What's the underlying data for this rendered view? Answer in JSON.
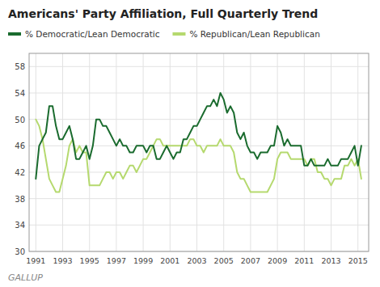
{
  "chart_data": {
    "type": "line",
    "title": "Americans' Party Affiliation, Full Quarterly Trend",
    "annotations": [
      "GALLUP"
    ],
    "grid": true,
    "legend": "top",
    "xlim": [
      1990.5,
      2015.8
    ],
    "xticks": [
      1991,
      1993,
      1995,
      1997,
      1999,
      2001,
      2003,
      2005,
      2007,
      2009,
      2011,
      2013,
      2015
    ],
    "ylim": [
      30,
      60
    ],
    "yticks": [
      30,
      34,
      38,
      42,
      46,
      50,
      54,
      58
    ],
    "x": [
      1991,
      1991.25,
      1991.5,
      1991.75,
      1992,
      1992.25,
      1992.5,
      1992.75,
      1993,
      1993.25,
      1993.5,
      1993.75,
      1994,
      1994.25,
      1994.5,
      1994.75,
      1995,
      1995.25,
      1995.5,
      1995.75,
      1996,
      1996.25,
      1996.5,
      1996.75,
      1997,
      1997.25,
      1997.5,
      1997.75,
      1998,
      1998.25,
      1998.5,
      1998.75,
      1999,
      1999.25,
      1999.5,
      1999.75,
      2000,
      2000.25,
      2000.5,
      2000.75,
      2001,
      2001.25,
      2001.5,
      2001.75,
      2002,
      2002.25,
      2002.5,
      2002.75,
      2003,
      2003.25,
      2003.5,
      2003.75,
      2004,
      2004.25,
      2004.5,
      2004.75,
      2005,
      2005.25,
      2005.5,
      2005.75,
      2006,
      2006.25,
      2006.5,
      2006.75,
      2007,
      2007.25,
      2007.5,
      2007.75,
      2008,
      2008.25,
      2008.5,
      2008.75,
      2009,
      2009.25,
      2009.5,
      2009.75,
      2010,
      2010.25,
      2010.5,
      2010.75,
      2011,
      2011.25,
      2011.5,
      2011.75,
      2012,
      2012.25,
      2012.5,
      2012.75,
      2013,
      2013.25,
      2013.5,
      2013.75,
      2014,
      2014.25,
      2014.5,
      2014.75,
      2015,
      2015.25
    ],
    "series": [
      {
        "name": "% Democratic/Lean Democratic",
        "color": "#1a6b2e",
        "values": [
          41,
          46,
          47,
          48,
          52,
          52,
          49,
          47,
          47,
          48,
          49,
          47,
          44,
          44,
          45,
          46,
          44,
          46,
          50,
          50,
          49,
          49,
          48,
          47,
          46,
          47,
          46,
          46,
          45,
          45,
          46,
          46,
          46,
          45,
          46,
          46,
          44,
          44,
          45,
          46,
          45,
          44,
          45,
          45,
          47,
          47,
          48,
          49,
          49,
          50,
          51,
          52,
          52,
          53,
          52,
          54,
          53,
          51,
          52,
          51,
          48,
          47,
          48,
          46,
          45,
          45,
          44,
          45,
          45,
          45,
          46,
          46,
          49,
          48,
          46,
          47,
          46,
          46,
          46,
          46,
          43,
          43,
          44,
          43,
          43,
          43,
          43,
          44,
          43,
          43,
          43,
          44,
          44,
          44,
          45,
          46,
          43,
          46
        ]
      },
      {
        "name": "% Republican/Lean Republican",
        "color": "#b5d96e",
        "values": [
          50,
          49,
          47,
          44,
          41,
          40,
          39,
          39,
          41,
          43,
          46,
          47,
          45,
          46,
          45,
          45,
          40,
          40,
          40,
          40,
          41,
          42,
          42,
          41,
          42,
          42,
          41,
          42,
          43,
          43,
          42,
          43,
          44,
          44,
          45,
          46,
          47,
          47,
          46,
          46,
          46,
          46,
          46,
          46,
          46,
          46,
          47,
          47,
          46,
          46,
          45,
          46,
          46,
          46,
          46,
          47,
          46,
          46,
          46,
          45,
          42,
          41,
          41,
          40,
          39,
          39,
          39,
          39,
          39,
          39,
          40,
          41,
          44,
          45,
          45,
          45,
          44,
          44,
          44,
          44,
          44,
          43,
          44,
          44,
          42,
          42,
          41,
          41,
          40,
          41,
          41,
          41,
          43,
          43,
          44,
          43,
          44,
          41
        ]
      }
    ]
  }
}
